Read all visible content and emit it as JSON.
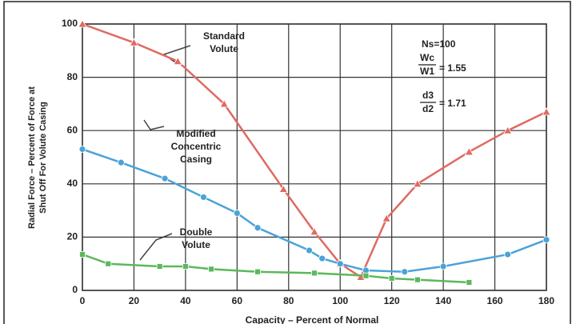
{
  "chart_data": {
    "type": "line",
    "ylabel_lines": [
      "Radial Force – Percent of Force at",
      "Shut Off For Volute Casing"
    ],
    "xlabel": "Capacity – Percent of Normal",
    "xlim": [
      0,
      180
    ],
    "xticks": [
      0,
      20,
      40,
      60,
      80,
      100,
      120,
      140,
      160,
      180
    ],
    "ylim": [
      0,
      100
    ],
    "yticks": [
      0,
      20,
      40,
      60,
      80,
      100
    ],
    "grid": true,
    "series": [
      {
        "color": "#e06a62",
        "marker": "triangle",
        "x": [
          0,
          20,
          37,
          55,
          78,
          90,
          100,
          108,
          118,
          130,
          150,
          165,
          180
        ],
        "values": [
          100,
          93,
          86,
          70,
          38,
          22,
          10,
          5,
          27,
          40,
          52,
          60,
          67
        ]
      },
      {
        "color": "#4aa3d8",
        "marker": "circle",
        "x": [
          0,
          15,
          32,
          47,
          60,
          68,
          88,
          93,
          100,
          110,
          125,
          140,
          165,
          180
        ],
        "values": [
          53,
          48,
          42,
          35,
          29,
          23.5,
          15,
          12,
          10,
          7.5,
          7,
          9,
          13.5,
          19
        ]
      },
      {
        "color": "#5cb85c",
        "marker": "square",
        "x": [
          0,
          10,
          30,
          40,
          50,
          68,
          90,
          110,
          120,
          130,
          150
        ],
        "values": [
          13.5,
          10,
          9,
          9,
          8,
          7,
          6.5,
          5.5,
          4.5,
          4,
          3
        ]
      }
    ],
    "annotations": [
      {
        "lines": [
          "Standard",
          "Volute"
        ]
      },
      {
        "lines": [
          "Modified",
          "Concentric",
          "Casing"
        ]
      },
      {
        "lines": [
          "Double",
          "Volute"
        ]
      }
    ],
    "note": {
      "ns": "Ns=100",
      "w_num": "Wc",
      "w_den": "W1",
      "w_val": "= 1.55",
      "d_num": "d3",
      "d_den": "d2",
      "d_val": "= 1.71"
    }
  }
}
